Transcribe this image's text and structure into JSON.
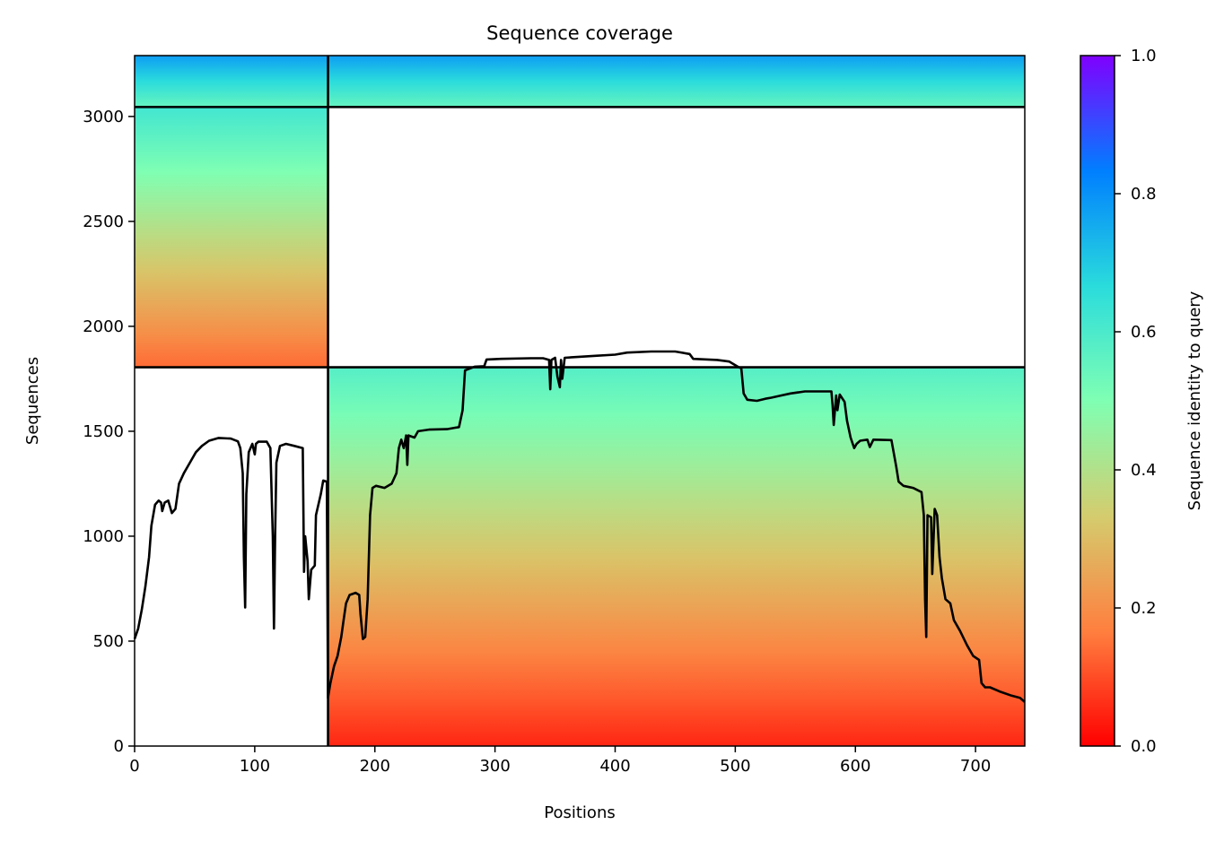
{
  "chart_data": {
    "type": "heatmap",
    "title": "Sequence coverage",
    "xlabel": "Positions",
    "ylabel": "Sequences",
    "xlim": [
      0,
      741
    ],
    "ylim": [
      0,
      3290
    ],
    "xticks": [
      0,
      100,
      200,
      300,
      400,
      500,
      600,
      700
    ],
    "yticks": [
      0,
      500,
      1000,
      1500,
      2000,
      2500,
      3000
    ],
    "colorbar": {
      "label": "Sequence identity to query",
      "range": [
        0,
        1
      ],
      "ticks": [
        0.0,
        0.2,
        0.4,
        0.6,
        0.8,
        1.0
      ],
      "tick_labels": [
        "0.0",
        "0.2",
        "0.4",
        "0.6",
        "0.8",
        "1.0"
      ],
      "colormap": "rainbow_r",
      "colors": [
        "#ff0000",
        "#ff7f3f",
        "#d4cc6e",
        "#7fffb3",
        "#2adcdc",
        "#007fff",
        "#8000ff"
      ]
    },
    "separators": {
      "x": [
        161
      ],
      "y": [
        1805,
        3045
      ]
    },
    "blocks": [
      {
        "name": "block-1",
        "x": [
          0,
          161
        ],
        "y": [
          1805,
          3045
        ],
        "identity_top": 0.62,
        "identity_bottom": 0.14
      },
      {
        "name": "block-2",
        "x": [
          161,
          741
        ],
        "y": [
          0,
          1805
        ],
        "identity_top": 0.58,
        "identity_bottom": 0.05
      },
      {
        "name": "block-3",
        "x": [
          0,
          741
        ],
        "y": [
          3045,
          3290
        ],
        "identity_top": 0.78,
        "identity_bottom": 0.55
      }
    ],
    "coverage_line": {
      "color": "#000000",
      "points": [
        [
          0,
          510
        ],
        [
          3,
          560
        ],
        [
          6,
          650
        ],
        [
          9,
          760
        ],
        [
          12,
          900
        ],
        [
          14,
          1050
        ],
        [
          17,
          1150
        ],
        [
          20,
          1170
        ],
        [
          22,
          1160
        ],
        [
          23,
          1120
        ],
        [
          25,
          1160
        ],
        [
          28,
          1170
        ],
        [
          31,
          1110
        ],
        [
          34,
          1130
        ],
        [
          37,
          1250
        ],
        [
          41,
          1300
        ],
        [
          46,
          1350
        ],
        [
          51,
          1400
        ],
        [
          56,
          1430
        ],
        [
          62,
          1455
        ],
        [
          70,
          1468
        ],
        [
          80,
          1465
        ],
        [
          86,
          1452
        ],
        [
          88,
          1420
        ],
        [
          90,
          1300
        ],
        [
          91,
          900
        ],
        [
          92,
          660
        ],
        [
          93,
          1200
        ],
        [
          95,
          1400
        ],
        [
          98,
          1440
        ],
        [
          100,
          1390
        ],
        [
          101,
          1440
        ],
        [
          103,
          1450
        ],
        [
          110,
          1450
        ],
        [
          113,
          1420
        ],
        [
          115,
          1000
        ],
        [
          116,
          560
        ],
        [
          117,
          1000
        ],
        [
          118,
          1350
        ],
        [
          121,
          1430
        ],
        [
          126,
          1440
        ],
        [
          133,
          1430
        ],
        [
          140,
          1420
        ],
        [
          141,
          830
        ],
        [
          142,
          1000
        ],
        [
          144,
          880
        ],
        [
          145,
          700
        ],
        [
          147,
          840
        ],
        [
          150,
          860
        ],
        [
          151,
          1100
        ],
        [
          155,
          1200
        ],
        [
          157,
          1265
        ],
        [
          160,
          1260
        ],
        [
          161,
          230
        ],
        [
          163,
          300
        ],
        [
          166,
          380
        ],
        [
          169,
          430
        ],
        [
          172,
          520
        ],
        [
          174,
          600
        ],
        [
          176,
          680
        ],
        [
          179,
          720
        ],
        [
          184,
          730
        ],
        [
          187,
          720
        ],
        [
          188,
          630
        ],
        [
          190,
          510
        ],
        [
          192,
          520
        ],
        [
          194,
          700
        ],
        [
          196,
          1100
        ],
        [
          198,
          1230
        ],
        [
          201,
          1240
        ],
        [
          208,
          1230
        ],
        [
          214,
          1250
        ],
        [
          218,
          1300
        ],
        [
          220,
          1420
        ],
        [
          222,
          1460
        ],
        [
          224,
          1420
        ],
        [
          226,
          1480
        ],
        [
          227,
          1340
        ],
        [
          228,
          1480
        ],
        [
          233,
          1470
        ],
        [
          236,
          1500
        ],
        [
          245,
          1508
        ],
        [
          260,
          1510
        ],
        [
          270,
          1520
        ],
        [
          273,
          1600
        ],
        [
          275,
          1790
        ],
        [
          283,
          1808
        ],
        [
          291,
          1810
        ],
        [
          293,
          1842
        ],
        [
          305,
          1845
        ],
        [
          330,
          1848
        ],
        [
          340,
          1848
        ],
        [
          345,
          1840
        ],
        [
          346,
          1700
        ],
        [
          347,
          1840
        ],
        [
          350,
          1850
        ],
        [
          352,
          1760
        ],
        [
          354,
          1710
        ],
        [
          355,
          1840
        ],
        [
          356,
          1750
        ],
        [
          358,
          1850
        ],
        [
          370,
          1855
        ],
        [
          385,
          1860
        ],
        [
          400,
          1865
        ],
        [
          410,
          1875
        ],
        [
          430,
          1880
        ],
        [
          450,
          1880
        ],
        [
          462,
          1868
        ],
        [
          465,
          1845
        ],
        [
          485,
          1840
        ],
        [
          495,
          1832
        ],
        [
          500,
          1815
        ],
        [
          503,
          1805
        ],
        [
          505,
          1800
        ],
        [
          507,
          1680
        ],
        [
          510,
          1650
        ],
        [
          518,
          1645
        ],
        [
          525,
          1655
        ],
        [
          530,
          1660
        ],
        [
          538,
          1670
        ],
        [
          546,
          1680
        ],
        [
          558,
          1690
        ],
        [
          575,
          1690
        ],
        [
          580,
          1690
        ],
        [
          581,
          1625
        ],
        [
          582,
          1530
        ],
        [
          584,
          1670
        ],
        [
          585,
          1600
        ],
        [
          587,
          1675
        ],
        [
          591,
          1640
        ],
        [
          593,
          1550
        ],
        [
          596,
          1470
        ],
        [
          599,
          1420
        ],
        [
          601,
          1440
        ],
        [
          604,
          1455
        ],
        [
          610,
          1460
        ],
        [
          612,
          1425
        ],
        [
          615,
          1460
        ],
        [
          630,
          1458
        ],
        [
          634,
          1330
        ],
        [
          636,
          1260
        ],
        [
          640,
          1240
        ],
        [
          648,
          1230
        ],
        [
          655,
          1210
        ],
        [
          657,
          1100
        ],
        [
          658,
          700
        ],
        [
          659,
          520
        ],
        [
          660,
          1100
        ],
        [
          663,
          1090
        ],
        [
          664,
          820
        ],
        [
          666,
          1130
        ],
        [
          668,
          1100
        ],
        [
          670,
          900
        ],
        [
          672,
          800
        ],
        [
          675,
          700
        ],
        [
          679,
          680
        ],
        [
          682,
          600
        ],
        [
          687,
          550
        ],
        [
          693,
          480
        ],
        [
          698,
          430
        ],
        [
          703,
          410
        ],
        [
          705,
          300
        ],
        [
          708,
          280
        ],
        [
          712,
          280
        ],
        [
          720,
          260
        ],
        [
          730,
          240
        ],
        [
          737,
          230
        ],
        [
          741,
          210
        ]
      ]
    }
  },
  "labels": {
    "title": "Sequence coverage",
    "xlabel": "Positions",
    "ylabel": "Sequences",
    "colorbar_label": "Sequence identity to query"
  }
}
